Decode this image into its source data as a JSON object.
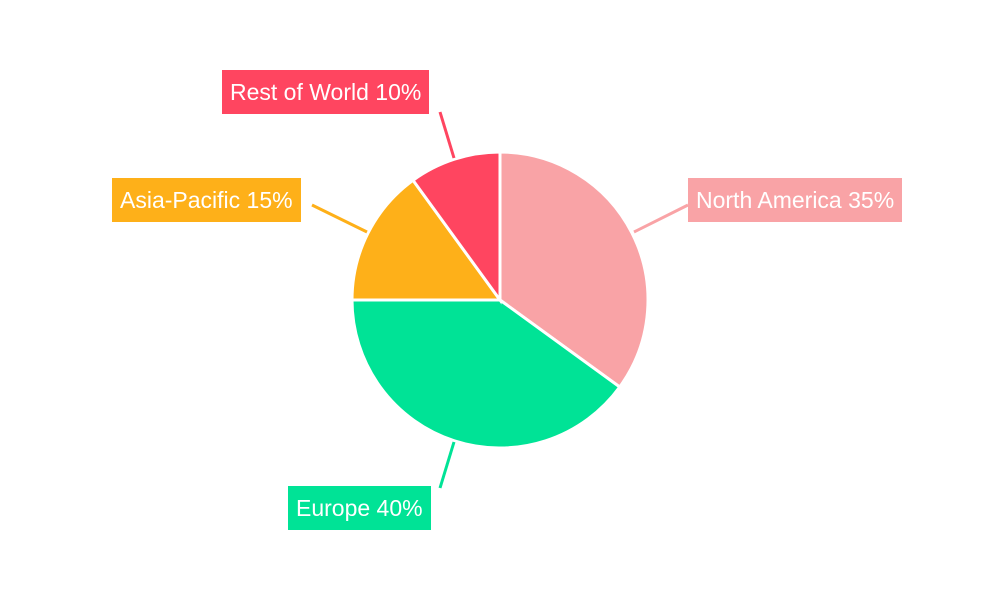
{
  "chart_data": {
    "type": "pie",
    "categories": [
      "North America",
      "Europe",
      "Asia-Pacific",
      "Rest of World"
    ],
    "values": [
      35,
      40,
      15,
      10
    ],
    "labels": [
      "North America 35%",
      "Europe 40%",
      "Asia-Pacific 15%",
      "Rest of World 10%"
    ],
    "colors": [
      "#f9a3a6",
      "#00e396",
      "#feb019",
      "#ff4560"
    ],
    "start_angle": "top, clockwise",
    "legend": "none",
    "title": ""
  }
}
